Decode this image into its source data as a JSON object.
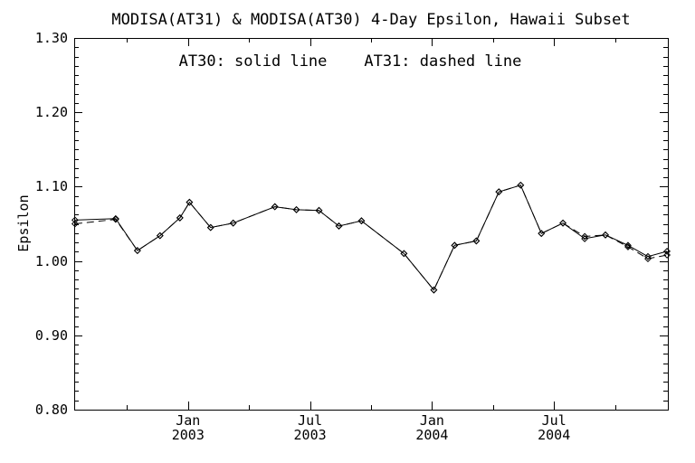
{
  "figure": {
    "background": "#ffffff",
    "foreground": "#000000"
  },
  "chart_data": {
    "type": "line",
    "title": "MODISA(AT31) & MODISA(AT30) 4-Day Epsilon, Hawaii Subset",
    "annotation": "AT30: solid line    AT31: dashed line",
    "ylabel": "Epsilon",
    "xlabel": "",
    "x_unit": "months since 2003-01-01 (tick labels show month/year)",
    "xlim": [
      -5.6,
      23.6
    ],
    "ylim": [
      0.8,
      1.3
    ],
    "grid": false,
    "legend_position": "none (text annotation inside plot)",
    "x_major_ticks": [
      {
        "pos": 0,
        "label": "Jan",
        "sublabel": "2003"
      },
      {
        "pos": 6,
        "label": "Jul",
        "sublabel": "2003"
      },
      {
        "pos": 12,
        "label": "Jan",
        "sublabel": "2004"
      },
      {
        "pos": 18,
        "label": "Jul",
        "sublabel": "2004"
      }
    ],
    "x_minor_ticks": [
      -3,
      3,
      9,
      15,
      21
    ],
    "y_major_ticks": [
      {
        "pos": 0.8,
        "label": "0.80"
      },
      {
        "pos": 0.9,
        "label": "0.90"
      },
      {
        "pos": 1.0,
        "label": "1.00"
      },
      {
        "pos": 1.1,
        "label": "1.10"
      },
      {
        "pos": 1.2,
        "label": "1.20"
      },
      {
        "pos": 1.3,
        "label": "1.30"
      }
    ],
    "y_minor_step": 0.0125,
    "marker": "diamond",
    "line_color": "#000000",
    "series": [
      {
        "name": "AT31",
        "style": "dashed",
        "x": [
          -5.56,
          -3.56,
          -2.49,
          -1.38,
          -0.4,
          0.07,
          1.11,
          2.22,
          4.27,
          5.33,
          6.44,
          7.42,
          8.53,
          10.62,
          12.09,
          13.11,
          14.18,
          15.29,
          16.36,
          17.38,
          18.44,
          19.51,
          20.53,
          21.64,
          22.62,
          23.56
        ],
        "values": [
          1.05,
          1.056,
          1.014,
          1.034,
          1.058,
          1.079,
          1.045,
          1.051,
          1.073,
          1.069,
          1.068,
          1.047,
          1.054,
          1.01,
          0.961,
          1.021,
          1.027,
          1.093,
          1.102,
          1.037,
          1.051,
          1.033,
          1.035,
          1.019,
          1.003,
          1.008
        ]
      },
      {
        "name": "AT30",
        "style": "solid",
        "x": [
          -5.56,
          -3.56,
          -2.49,
          -1.38,
          -0.4,
          0.07,
          1.11,
          2.22,
          4.27,
          5.33,
          6.44,
          7.42,
          8.53,
          10.62,
          12.09,
          13.11,
          14.18,
          15.29,
          16.36,
          17.38,
          18.44,
          19.51,
          20.53,
          21.64,
          22.62,
          23.56
        ],
        "values": [
          1.055,
          1.057,
          1.014,
          1.034,
          1.058,
          1.079,
          1.045,
          1.051,
          1.073,
          1.069,
          1.068,
          1.047,
          1.054,
          1.01,
          0.961,
          1.021,
          1.027,
          1.093,
          1.102,
          1.037,
          1.051,
          1.03,
          1.035,
          1.021,
          1.006,
          1.013
        ]
      }
    ]
  }
}
